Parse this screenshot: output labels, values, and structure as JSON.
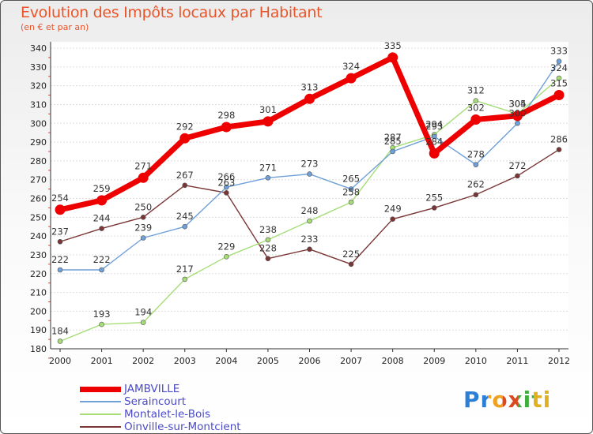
{
  "chart_data": {
    "type": "line",
    "title": "Evolution des Impôts locaux par Habitant",
    "subtitle": "(en € et par an)",
    "x": [
      "2000",
      "2001",
      "2002",
      "2003",
      "2004",
      "2005",
      "2006",
      "2007",
      "2008",
      "2009",
      "2010",
      "2011",
      "2012"
    ],
    "ylim": [
      180,
      340
    ],
    "yticks": [
      180,
      190,
      200,
      210,
      220,
      230,
      240,
      250,
      260,
      270,
      280,
      290,
      300,
      310,
      320,
      330,
      340
    ],
    "series": [
      {
        "name": "JAMBVILLE",
        "color": "#ee0000",
        "values": [
          254,
          259,
          271,
          292,
          298,
          301,
          313,
          324,
          335,
          284,
          302,
          304,
          315
        ]
      },
      {
        "name": "Seraincourt",
        "color": "#6fa0d8",
        "values": [
          222,
          222,
          239,
          245,
          266,
          271,
          273,
          265,
          285,
          293,
          278,
          300,
          333
        ]
      },
      {
        "name": "Montalet-le-Bois",
        "color": "#a6dd77",
        "values": [
          184,
          193,
          194,
          217,
          229,
          238,
          248,
          258,
          287,
          294,
          312,
          305,
          324
        ]
      },
      {
        "name": "Oinville-sur-Montcient",
        "color": "#7a3535",
        "values": [
          237,
          244,
          250,
          267,
          263,
          228,
          233,
          225,
          249,
          255,
          262,
          272,
          286
        ]
      }
    ]
  },
  "logo": {
    "text": "Proxiti"
  }
}
